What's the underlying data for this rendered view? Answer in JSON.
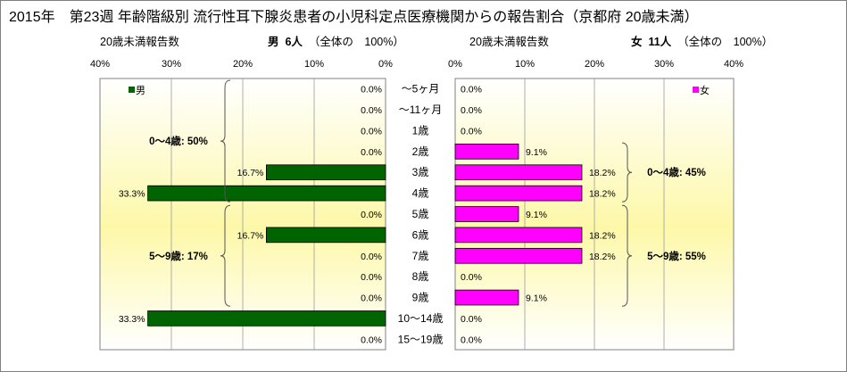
{
  "title": "2015年　第23週 年齢階級別 流行性耳下腺炎患者の小児科定点医療機関からの報告割合（京都府 20歳未満）",
  "male_panel": {
    "report_label": "20歳未満報告数",
    "sex": "男",
    "count": "6人",
    "share": "（全体の　100%）"
  },
  "female_panel": {
    "report_label": "20歳未満報告数",
    "sex": "女",
    "count": "11人",
    "share": "（全体の　100%）"
  },
  "colors": {
    "male": "#006400",
    "female": "#ff00ff",
    "plot_bg_top": "#ffffff",
    "plot_bg_mid": "#fdf8a8"
  },
  "chart_data": {
    "type": "bar",
    "orientation": "horizontal-pyramid",
    "categories": [
      "～5ヶ月",
      "～11ヶ月",
      "1歳",
      "2歳",
      "3歳",
      "4歳",
      "5歳",
      "6歳",
      "7歳",
      "8歳",
      "9歳",
      "10～14歳",
      "15～19歳"
    ],
    "series": [
      {
        "name": "男",
        "values": [
          0.0,
          0.0,
          0.0,
          0.0,
          16.7,
          33.3,
          0.0,
          16.7,
          0.0,
          0.0,
          0.0,
          33.3,
          0.0
        ],
        "labels": [
          "0.0%",
          "0.0%",
          "0.0%",
          "0.0%",
          "16.7%",
          "33.3%",
          "0.0%",
          "16.7%",
          "0.0%",
          "0.0%",
          "0.0%",
          "33.3%",
          "0.0%"
        ]
      },
      {
        "name": "女",
        "values": [
          0.0,
          0.0,
          0.0,
          9.1,
          18.2,
          18.2,
          9.1,
          18.2,
          18.2,
          0.0,
          9.1,
          0.0,
          0.0
        ],
        "labels": [
          "0.0%",
          "0.0%",
          "0.0%",
          "9.1%",
          "18.2%",
          "18.2%",
          "9.1%",
          "18.2%",
          "18.2%",
          "0.0%",
          "9.1%",
          "0.0%",
          "0.0%"
        ]
      }
    ],
    "xlim": [
      0,
      40
    ],
    "male_ticks": [
      "40%",
      "30%",
      "20%",
      "10%",
      "0%"
    ],
    "female_ticks": [
      "0%",
      "10%",
      "20%",
      "30%",
      "40%"
    ],
    "groups": {
      "male": [
        {
          "label": "0～4歳: 50%",
          "from": 0,
          "to": 5
        },
        {
          "label": "5～9歳: 17%",
          "from": 6,
          "to": 10
        }
      ],
      "female": [
        {
          "label": "0～4歳: 45%",
          "from": 3,
          "to": 5
        },
        {
          "label": "5～9歳: 55%",
          "from": 6,
          "to": 10
        }
      ]
    },
    "grid": true,
    "legend": "top-left (male) / top-right (female)"
  }
}
